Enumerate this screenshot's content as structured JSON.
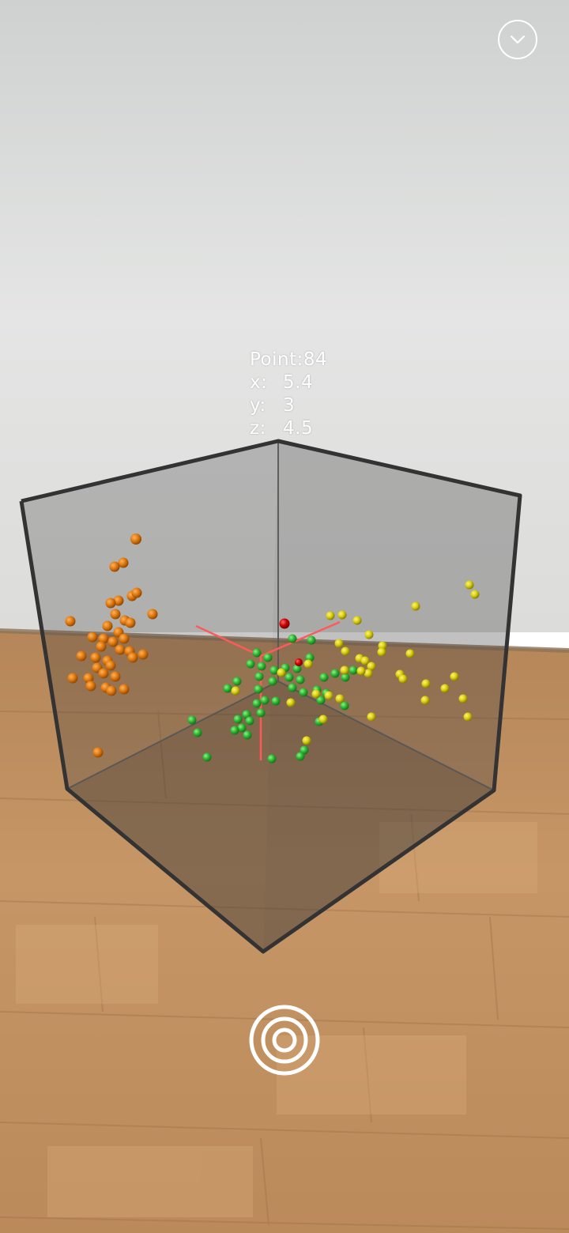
{
  "point_info": {
    "point_label": "Point:",
    "point_number": "84",
    "x_label": "x:",
    "x_value": "5.4",
    "y_label": "y:",
    "y_value": "3",
    "z_label": "z:",
    "z_value": "4.5"
  },
  "controls": {
    "collapse_icon": "chevron-down-icon",
    "capture_icon": "target-icon"
  },
  "colors": {
    "orange_cluster": "#e07a10",
    "green_cluster": "#2fb832",
    "yellow_cluster": "#d9cf0f",
    "selected_point": "#cc0000",
    "crosshair_line": "#ff5a5a"
  }
}
